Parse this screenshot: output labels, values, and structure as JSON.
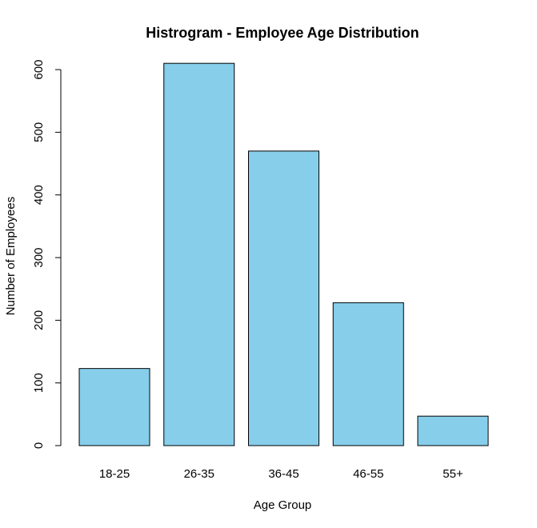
{
  "chart_data": {
    "type": "bar",
    "title": "Histrogram - Employee Age Distribution",
    "xlabel": "Age Group",
    "ylabel": "Number of Employees",
    "categories": [
      "18-25",
      "26-35",
      "36-45",
      "46-55",
      "55+"
    ],
    "values": [
      123,
      610,
      470,
      228,
      47
    ],
    "ylim": [
      0,
      600
    ],
    "yticks": [
      "0",
      "100",
      "200",
      "300",
      "400",
      "500",
      "600"
    ],
    "bar_color": "#87CEEB",
    "bar_border_color": "#000000",
    "grid": false,
    "legend": "none"
  }
}
